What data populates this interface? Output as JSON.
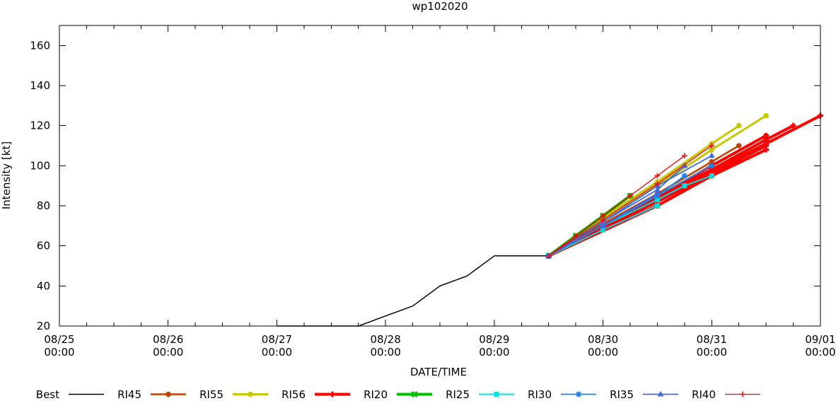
{
  "chart_data": {
    "type": "line",
    "title": "wp102020",
    "xlabel": "DATE/TIME",
    "ylabel": "Intensity [kt]",
    "xlim": [
      "08/25 00:00",
      "09/01 00:00"
    ],
    "ylim": [
      20,
      170
    ],
    "xticks": [
      {
        "date": "08/25",
        "time": "00:00"
      },
      {
        "date": "08/26",
        "time": "00:00"
      },
      {
        "date": "08/27",
        "time": "00:00"
      },
      {
        "date": "08/28",
        "time": "00:00"
      },
      {
        "date": "08/29",
        "time": "00:00"
      },
      {
        "date": "08/30",
        "time": "00:00"
      },
      {
        "date": "08/31",
        "time": "00:00"
      },
      {
        "date": "09/01",
        "time": "00:00"
      }
    ],
    "yticks": [
      20,
      40,
      60,
      80,
      100,
      120,
      140,
      160
    ],
    "grid": false,
    "legend_position": "bottom",
    "series": [
      {
        "name": "Best",
        "color": "#000000",
        "marker": "none",
        "lines": [
          [
            [
              "08/27 00:00",
              20
            ],
            [
              "08/27 06:00",
              20
            ],
            [
              "08/27 12:00",
              20
            ],
            [
              "08/27 18:00",
              20
            ],
            [
              "08/28 00:00",
              25
            ],
            [
              "08/28 06:00",
              30
            ],
            [
              "08/28 12:00",
              40
            ],
            [
              "08/28 18:00",
              45
            ],
            [
              "08/29 00:00",
              55
            ],
            [
              "08/29 06:00",
              55
            ],
            [
              "08/29 12:00",
              55
            ]
          ]
        ]
      },
      {
        "name": "RI45",
        "color": "#c04000",
        "marker": "circle",
        "lines": [
          [
            [
              "08/29 12:00",
              55
            ],
            [
              "08/30 00:00",
              71
            ],
            [
              "08/30 12:00",
              86
            ],
            [
              "08/31 00:00",
              102
            ],
            [
              "08/31 06:00",
              110
            ]
          ],
          [
            [
              "08/29 12:00",
              55
            ],
            [
              "08/30 00:00",
              70
            ],
            [
              "08/30 12:00",
              85
            ],
            [
              "08/31 00:00",
              100
            ],
            [
              "08/31 12:00",
              115
            ]
          ],
          [
            [
              "08/29 12:00",
              55
            ],
            [
              "08/30 00:00",
              69
            ],
            [
              "08/30 12:00",
              84
            ],
            [
              "08/31 00:00",
              98
            ],
            [
              "08/31 12:00",
              113
            ]
          ]
        ]
      },
      {
        "name": "RI55",
        "color": "#c8c800",
        "marker": "circle",
        "lines": [
          [
            [
              "08/29 12:00",
              55
            ],
            [
              "08/30 00:00",
              73
            ],
            [
              "08/30 12:00",
              90
            ],
            [
              "08/31 00:00",
              108
            ],
            [
              "08/31 12:00",
              125
            ]
          ],
          [
            [
              "08/29 12:00",
              55
            ],
            [
              "08/30 00:00",
              74
            ],
            [
              "08/30 12:00",
              92
            ],
            [
              "08/31 00:00",
              111
            ],
            [
              "08/31 06:00",
              120
            ]
          ],
          [
            [
              "08/29 12:00",
              55
            ],
            [
              "08/30 00:00",
              73
            ],
            [
              "08/30 12:00",
              91
            ],
            [
              "08/30 18:00",
              100
            ]
          ]
        ]
      },
      {
        "name": "RI56",
        "color": "#ff0000",
        "marker": "plus",
        "lines": [
          [
            [
              "08/29 12:00",
              55
            ],
            [
              "08/30 12:00",
              83
            ],
            [
              "08/31 00:00",
              97
            ],
            [
              "08/31 12:00",
              111
            ],
            [
              "09/01 00:00",
              125
            ]
          ],
          [
            [
              "08/29 12:00",
              55
            ],
            [
              "08/30 12:00",
              84
            ],
            [
              "08/31 00:00",
              98
            ],
            [
              "08/31 12:00",
              113
            ],
            [
              "08/31 18:00",
              120
            ]
          ],
          [
            [
              "08/29 12:00",
              55
            ],
            [
              "08/30 12:00",
              84
            ],
            [
              "08/31 00:00",
              100
            ],
            [
              "08/31 12:00",
              115
            ]
          ],
          [
            [
              "08/29 12:00",
              55
            ],
            [
              "08/30 12:00",
              82
            ],
            [
              "08/31 00:00",
              96
            ],
            [
              "08/31 12:00",
              110
            ]
          ],
          [
            [
              "08/29 12:00",
              55
            ],
            [
              "08/30 12:00",
              80
            ],
            [
              "08/31 00:00",
              95
            ],
            [
              "08/31 12:00",
              108
            ]
          ]
        ]
      },
      {
        "name": "RI20",
        "color": "#00c000",
        "marker": "x",
        "lines": [
          [
            [
              "08/29 12:00",
              55
            ],
            [
              "08/29 18:00",
              65
            ],
            [
              "08/30 00:00",
              75
            ],
            [
              "08/30 06:00",
              85
            ]
          ]
        ]
      },
      {
        "name": "RI25",
        "color": "#00e0e0",
        "marker": "square",
        "lines": [
          [
            [
              "08/29 12:00",
              55
            ],
            [
              "08/30 00:00",
              68
            ],
            [
              "08/30 12:00",
              80
            ]
          ],
          [
            [
              "08/29 12:00",
              55
            ],
            [
              "08/30 00:00",
              70
            ],
            [
              "08/30 12:00",
              83
            ],
            [
              "08/30 18:00",
              90
            ],
            [
              "08/31 00:00",
              95
            ]
          ]
        ]
      },
      {
        "name": "RI30",
        "color": "#1c86ee",
        "marker": "asterisk",
        "lines": [
          [
            [
              "08/29 12:00",
              55
            ],
            [
              "08/30 00:00",
              70
            ],
            [
              "08/30 12:00",
              85
            ],
            [
              "08/31 00:00",
              100
            ]
          ],
          [
            [
              "08/29 12:00",
              55
            ],
            [
              "08/30 00:00",
              70
            ],
            [
              "08/30 12:00",
              85
            ],
            [
              "08/30 18:00",
              95
            ]
          ]
        ]
      },
      {
        "name": "RI35",
        "color": "#4169e1",
        "marker": "triangle",
        "lines": [
          [
            [
              "08/29 12:00",
              55
            ],
            [
              "08/30 00:00",
              72
            ],
            [
              "08/30 12:00",
              90
            ],
            [
              "08/31 00:00",
              105
            ]
          ],
          [
            [
              "08/29 12:00",
              55
            ],
            [
              "08/30 00:00",
              72
            ],
            [
              "08/30 12:00",
              88
            ],
            [
              "08/30 18:00",
              100
            ]
          ],
          [
            [
              "08/29 12:00",
              55
            ],
            [
              "08/30 00:00",
              70
            ],
            [
              "08/30 12:00",
              86
            ]
          ]
        ]
      },
      {
        "name": "RI40",
        "color": "#ff0000",
        "marker": "plus",
        "lines": [
          [
            [
              "08/29 12:00",
              55
            ],
            [
              "08/29 18:00",
              65
            ],
            [
              "08/30 00:00",
              75
            ],
            [
              "08/30 06:00",
              85
            ],
            [
              "08/30 12:00",
              95
            ],
            [
              "08/30 18:00",
              105
            ]
          ],
          [
            [
              "08/29 12:00",
              55
            ],
            [
              "08/30 00:00",
              73
            ],
            [
              "08/30 12:00",
              91
            ],
            [
              "08/31 00:00",
              110
            ]
          ]
        ]
      }
    ]
  }
}
